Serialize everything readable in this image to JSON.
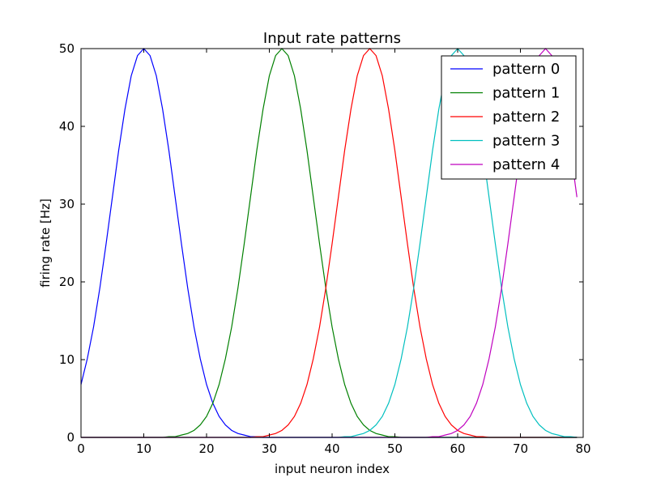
{
  "chart_data": {
    "type": "line",
    "title": "Input rate patterns",
    "xlabel": "input neuron index",
    "ylabel": "firing rate [Hz]",
    "xlim": [
      0,
      80
    ],
    "ylim": [
      0,
      50
    ],
    "xticks": [
      0,
      10,
      20,
      30,
      40,
      50,
      60,
      70,
      80
    ],
    "yticks": [
      0,
      10,
      20,
      30,
      40,
      50
    ],
    "grid": false,
    "legend_position": "top-right",
    "x": [
      0,
      1,
      2,
      3,
      4,
      5,
      6,
      7,
      8,
      9,
      10,
      11,
      12,
      13,
      14,
      15,
      16,
      17,
      18,
      19,
      20,
      21,
      22,
      23,
      24,
      25,
      26,
      27,
      28,
      29,
      30,
      31,
      32,
      33,
      34,
      35,
      36,
      37,
      38,
      39,
      40,
      41,
      42,
      43,
      44,
      45,
      46,
      47,
      48,
      49,
      50,
      51,
      52,
      53,
      54,
      55,
      56,
      57,
      58,
      59,
      60,
      61,
      62,
      63,
      64,
      65,
      66,
      67,
      68,
      69,
      70,
      71,
      72,
      73,
      74,
      75,
      76,
      77,
      78,
      79
    ],
    "series": [
      {
        "name": "pattern 0",
        "color": "#0000ff",
        "values": [
          6.8,
          10.1,
          14.2,
          19.2,
          24.9,
          30.9,
          36.9,
          42.2,
          46.5,
          49.1,
          50.0,
          49.1,
          46.5,
          42.2,
          36.9,
          30.9,
          24.9,
          19.2,
          14.2,
          10.1,
          6.8,
          4.4,
          2.7,
          1.6,
          0.9,
          0.5,
          0.3,
          0.1,
          0.1,
          0.0,
          0.0,
          0.0,
          0.0,
          0.0,
          0.0,
          0.0,
          0.0,
          0.0,
          0.0,
          0.0,
          0.0,
          0.0,
          0.0,
          0.0,
          0.0,
          0.0,
          0.0,
          0.0,
          0.0,
          0.0,
          0.0,
          0.0,
          0.0,
          0.0,
          0.0,
          0.0,
          0.0,
          0.0,
          0.0,
          0.0,
          0.0,
          0.0,
          0.0,
          0.0,
          0.0,
          0.0,
          0.0,
          0.0,
          0.0,
          0.0,
          0.0,
          0.0,
          0.0,
          0.0,
          0.0,
          0.0,
          0.0,
          0.0,
          0.0,
          0.0
        ]
      },
      {
        "name": "pattern 1",
        "color": "#008000",
        "values": [
          0.0,
          0.0,
          0.0,
          0.0,
          0.0,
          0.0,
          0.0,
          0.0,
          0.0,
          0.0,
          0.0,
          0.0,
          0.0,
          0.0,
          0.1,
          0.1,
          0.3,
          0.5,
          0.9,
          1.6,
          2.7,
          4.4,
          6.8,
          10.1,
          14.2,
          19.2,
          24.9,
          30.9,
          36.9,
          42.2,
          46.5,
          49.1,
          50.0,
          49.1,
          46.5,
          42.2,
          36.9,
          30.9,
          24.9,
          19.2,
          14.2,
          10.1,
          6.8,
          4.4,
          2.7,
          1.6,
          0.9,
          0.5,
          0.3,
          0.1,
          0.1,
          0.0,
          0.0,
          0.0,
          0.0,
          0.0,
          0.0,
          0.0,
          0.0,
          0.0,
          0.0,
          0.0,
          0.0,
          0.0,
          0.0,
          0.0,
          0.0,
          0.0,
          0.0,
          0.0,
          0.0,
          0.0,
          0.0,
          0.0,
          0.0,
          0.0,
          0.0,
          0.0,
          0.0,
          0.0
        ]
      },
      {
        "name": "pattern 2",
        "color": "#ff0000",
        "values": [
          0.0,
          0.0,
          0.0,
          0.0,
          0.0,
          0.0,
          0.0,
          0.0,
          0.0,
          0.0,
          0.0,
          0.0,
          0.0,
          0.0,
          0.0,
          0.0,
          0.0,
          0.0,
          0.0,
          0.0,
          0.0,
          0.0,
          0.0,
          0.0,
          0.0,
          0.0,
          0.0,
          0.0,
          0.1,
          0.1,
          0.3,
          0.5,
          0.9,
          1.6,
          2.7,
          4.4,
          6.8,
          10.1,
          14.2,
          19.2,
          24.9,
          30.9,
          36.9,
          42.2,
          46.5,
          49.1,
          50.0,
          49.1,
          46.5,
          42.2,
          36.9,
          30.9,
          24.9,
          19.2,
          14.2,
          10.1,
          6.8,
          4.4,
          2.7,
          1.6,
          0.9,
          0.5,
          0.3,
          0.1,
          0.1,
          0.0,
          0.0,
          0.0,
          0.0,
          0.0,
          0.0,
          0.0,
          0.0,
          0.0,
          0.0,
          0.0,
          0.0,
          0.0,
          0.0,
          0.0
        ]
      },
      {
        "name": "pattern 3",
        "color": "#00bfbf",
        "values": [
          0.0,
          0.0,
          0.0,
          0.0,
          0.0,
          0.0,
          0.0,
          0.0,
          0.0,
          0.0,
          0.0,
          0.0,
          0.0,
          0.0,
          0.0,
          0.0,
          0.0,
          0.0,
          0.0,
          0.0,
          0.0,
          0.0,
          0.0,
          0.0,
          0.0,
          0.0,
          0.0,
          0.0,
          0.0,
          0.0,
          0.0,
          0.0,
          0.0,
          0.0,
          0.0,
          0.0,
          0.0,
          0.0,
          0.0,
          0.0,
          0.0,
          0.0,
          0.1,
          0.1,
          0.3,
          0.5,
          0.9,
          1.6,
          2.7,
          4.4,
          6.8,
          10.1,
          14.2,
          19.2,
          24.9,
          30.9,
          36.9,
          42.2,
          46.5,
          49.1,
          50.0,
          49.1,
          46.5,
          42.2,
          36.9,
          30.9,
          24.9,
          19.2,
          14.2,
          10.1,
          6.8,
          4.4,
          2.7,
          1.6,
          0.9,
          0.5,
          0.3,
          0.1,
          0.1,
          0.0
        ]
      },
      {
        "name": "pattern 4",
        "color": "#bf00bf",
        "values": [
          0.0,
          0.0,
          0.0,
          0.0,
          0.0,
          0.0,
          0.0,
          0.0,
          0.0,
          0.0,
          0.0,
          0.0,
          0.0,
          0.0,
          0.0,
          0.0,
          0.0,
          0.0,
          0.0,
          0.0,
          0.0,
          0.0,
          0.0,
          0.0,
          0.0,
          0.0,
          0.0,
          0.0,
          0.0,
          0.0,
          0.0,
          0.0,
          0.0,
          0.0,
          0.0,
          0.0,
          0.0,
          0.0,
          0.0,
          0.0,
          0.0,
          0.0,
          0.0,
          0.0,
          0.0,
          0.0,
          0.0,
          0.0,
          0.0,
          0.0,
          0.0,
          0.0,
          0.0,
          0.0,
          0.0,
          0.0,
          0.1,
          0.1,
          0.3,
          0.5,
          0.9,
          1.6,
          2.7,
          4.4,
          6.8,
          10.1,
          14.2,
          19.2,
          24.9,
          30.9,
          36.9,
          42.2,
          46.5,
          49.1,
          50.0,
          49.1,
          46.5,
          42.2,
          36.9,
          30.9
        ]
      }
    ]
  }
}
